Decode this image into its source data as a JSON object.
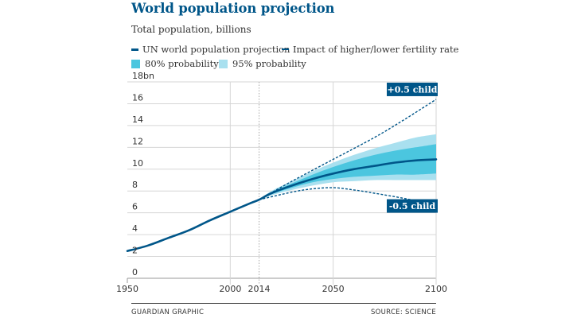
{
  "header": {
    "title": "World population projection",
    "subtitle": "Total population, billions"
  },
  "legend": {
    "un_line": "UN world population projection",
    "fertility": "Impact of higher/lower fertility rate",
    "p80": "80% probability",
    "p95": "95% probability"
  },
  "footer": {
    "left": "GUARDIAN GRAPHIC",
    "right": "SOURCE: SCIENCE"
  },
  "colors": {
    "line": "#005689",
    "band80": "#4bc6df",
    "band95": "#a9e0ef",
    "grid": "#d6d6d6",
    "label_bg": "#005689"
  },
  "chart_data": {
    "type": "line",
    "title": "World population projection",
    "subtitle": "Total population, billions",
    "ylim": [
      0,
      18
    ],
    "xlim": [
      1950,
      2100
    ],
    "y_ticks": [
      "0",
      "2",
      "4",
      "6",
      "8",
      "10",
      "12",
      "14",
      "16",
      "18bn"
    ],
    "y_tick_values": [
      0,
      2,
      4,
      6,
      8,
      10,
      12,
      14,
      16,
      18
    ],
    "x_ticks": [
      "1950",
      "2000",
      "2014",
      "2050",
      "2100"
    ],
    "x_tick_values": [
      1950,
      2000,
      2014,
      2050,
      2100
    ],
    "grid": true,
    "series": [
      {
        "name": "UN world population projection",
        "x": [
          1950,
          1960,
          1970,
          1980,
          1990,
          2000,
          2010,
          2014,
          2020,
          2030,
          2040,
          2050,
          2060,
          2070,
          2080,
          2090,
          2100
        ],
        "values": [
          2.5,
          3.0,
          3.7,
          4.4,
          5.3,
          6.1,
          6.9,
          7.2,
          7.8,
          8.5,
          9.1,
          9.6,
          10.0,
          10.3,
          10.6,
          10.8,
          10.9
        ]
      }
    ],
    "band_80": {
      "x": [
        2014,
        2020,
        2030,
        2040,
        2050,
        2060,
        2070,
        2080,
        2090,
        2100
      ],
      "low": [
        7.2,
        7.7,
        8.3,
        8.8,
        9.1,
        9.3,
        9.4,
        9.5,
        9.5,
        9.6
      ],
      "high": [
        7.2,
        7.9,
        8.7,
        9.5,
        10.2,
        10.8,
        11.3,
        11.7,
        12.0,
        12.3
      ]
    },
    "band_95": {
      "x": [
        2014,
        2020,
        2030,
        2040,
        2050,
        2060,
        2070,
        2080,
        2090,
        2100
      ],
      "low": [
        7.2,
        7.6,
        8.1,
        8.5,
        8.8,
        8.9,
        9.0,
        9.0,
        9.0,
        9.0
      ],
      "high": [
        7.2,
        8.0,
        8.9,
        9.8,
        10.6,
        11.3,
        11.9,
        12.4,
        12.9,
        13.2
      ]
    },
    "fertility_scenarios": [
      {
        "label": "+0.5 child",
        "x": [
          2014,
          2030,
          2050,
          2070,
          2085,
          2100
        ],
        "values": [
          7.2,
          8.9,
          10.9,
          12.9,
          14.6,
          16.4
        ]
      },
      {
        "label": "-0.5 child",
        "x": [
          2014,
          2030,
          2040,
          2050,
          2060,
          2070,
          2085,
          2100
        ],
        "values": [
          7.2,
          7.9,
          8.2,
          8.3,
          8.1,
          7.8,
          7.3,
          6.7
        ]
      }
    ]
  }
}
